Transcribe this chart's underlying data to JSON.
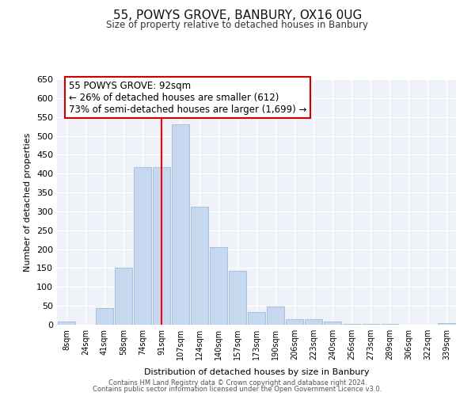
{
  "title": "55, POWYS GROVE, BANBURY, OX16 0UG",
  "subtitle": "Size of property relative to detached houses in Banbury",
  "xlabel": "Distribution of detached houses by size in Banbury",
  "ylabel": "Number of detached properties",
  "bar_labels": [
    "8sqm",
    "24sqm",
    "41sqm",
    "58sqm",
    "74sqm",
    "91sqm",
    "107sqm",
    "124sqm",
    "140sqm",
    "157sqm",
    "173sqm",
    "190sqm",
    "206sqm",
    "223sqm",
    "240sqm",
    "256sqm",
    "273sqm",
    "289sqm",
    "306sqm",
    "322sqm",
    "339sqm"
  ],
  "bar_values": [
    8,
    0,
    44,
    150,
    418,
    418,
    530,
    313,
    205,
    143,
    33,
    49,
    15,
    14,
    8,
    3,
    2,
    2,
    1,
    0,
    5
  ],
  "bar_color": "#c5d8f0",
  "bar_edge_color": "#a0bcd8",
  "vline_x_index": 5,
  "vline_color": "red",
  "ylim": [
    0,
    650
  ],
  "yticks": [
    0,
    50,
    100,
    150,
    200,
    250,
    300,
    350,
    400,
    450,
    500,
    550,
    600,
    650
  ],
  "annotation_title": "55 POWYS GROVE: 92sqm",
  "annotation_line1": "← 26% of detached houses are smaller (612)",
  "annotation_line2": "73% of semi-detached houses are larger (1,699) →",
  "annotation_box_color": "#ffffff",
  "annotation_box_edge": "#cc0000",
  "footer_line1": "Contains HM Land Registry data © Crown copyright and database right 2024.",
  "footer_line2": "Contains public sector information licensed under the Open Government Licence v3.0.",
  "background_color": "#eef2f8"
}
